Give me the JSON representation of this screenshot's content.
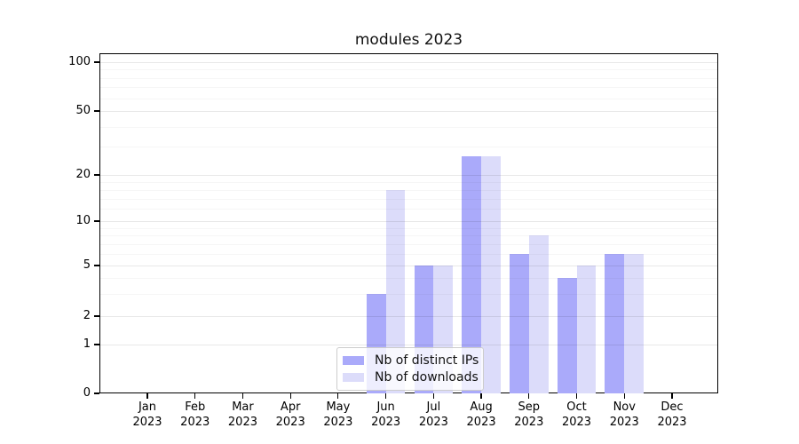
{
  "chart_data": {
    "type": "bar",
    "title": "modules 2023",
    "categories": [
      "Jan",
      "Feb",
      "Mar",
      "Apr",
      "May",
      "Jun",
      "Jul",
      "Aug",
      "Sep",
      "Oct",
      "Nov",
      "Dec"
    ],
    "year_label": "2023",
    "series": [
      {
        "name": "Nb of distinct IPs",
        "color": "#aaaafa",
        "values": [
          0,
          0,
          0,
          0,
          0,
          3,
          5,
          26,
          6,
          4,
          6,
          0
        ]
      },
      {
        "name": "Nb of downloads",
        "color": "#dcdcfa",
        "values": [
          0,
          0,
          0,
          0,
          0,
          16,
          5,
          26,
          8,
          5,
          6,
          0
        ]
      }
    ],
    "yticks": [
      0,
      1,
      2,
      5,
      10,
      20,
      50,
      100
    ],
    "ylim": [
      0,
      112
    ],
    "xlabel": "",
    "ylabel": "",
    "yscale": "log above 1, linear 0-1",
    "grid": true,
    "legend_position": "lower center"
  }
}
